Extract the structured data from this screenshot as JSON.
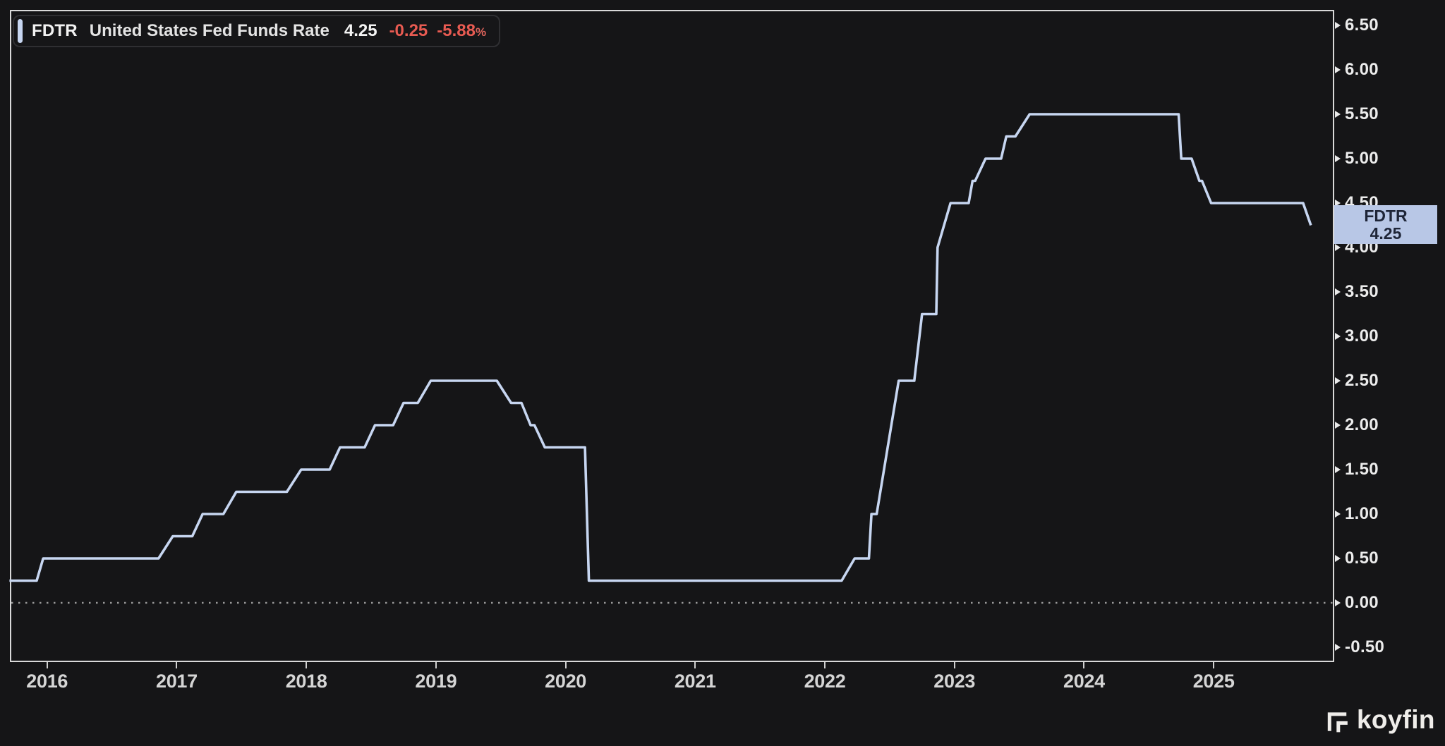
{
  "legend": {
    "ticker": "FDTR",
    "name": "United States Fed Funds Rate",
    "last": "4.25",
    "change": "-0.25",
    "change_pct": "-5.88",
    "percent_sign": "%"
  },
  "axis_price_label": {
    "ticker": "FDTR",
    "value": "4.25"
  },
  "watermark": {
    "brand": "koyfin"
  },
  "colors": {
    "background": "#151517",
    "frame_border": "#d9d9d9",
    "line": "#c7d6f1",
    "legend_accent_bar": "#c7d6f1",
    "negative_text": "#e85b52",
    "tick_text": "#ececec",
    "year_text": "#d5d5d5",
    "price_label_bg": "#b8c7e6",
    "price_label_text": "#1e2537",
    "zero_dotted_line": "#9b9b9b"
  },
  "chart_data": {
    "type": "line",
    "title": "FDTR — United States Fed Funds Rate",
    "xlabel": "",
    "ylabel": "",
    "grid": "none",
    "legend_position": "top-left",
    "x_domain": [
      2015.713,
      2025.93
    ],
    "y_domain": [
      -0.667,
      6.675
    ],
    "zero_line_value": 0,
    "x_ticks": [
      {
        "value": 2016,
        "label": "2016"
      },
      {
        "value": 2017,
        "label": "2017"
      },
      {
        "value": 2018,
        "label": "2018"
      },
      {
        "value": 2019,
        "label": "2019"
      },
      {
        "value": 2020,
        "label": "2020"
      },
      {
        "value": 2021,
        "label": "2021"
      },
      {
        "value": 2022,
        "label": "2022"
      },
      {
        "value": 2023,
        "label": "2023"
      },
      {
        "value": 2024,
        "label": "2024"
      },
      {
        "value": 2025,
        "label": "2025"
      }
    ],
    "y_ticks": [
      {
        "value": 6.5,
        "label": "6.50"
      },
      {
        "value": 6.0,
        "label": "6.00"
      },
      {
        "value": 5.5,
        "label": "5.50"
      },
      {
        "value": 5.0,
        "label": "5.00"
      },
      {
        "value": 4.5,
        "label": "4.50"
      },
      {
        "value": 4.0,
        "label": "4.00"
      },
      {
        "value": 3.5,
        "label": "3.50"
      },
      {
        "value": 3.0,
        "label": "3.00"
      },
      {
        "value": 2.5,
        "label": "2.50"
      },
      {
        "value": 2.0,
        "label": "2.00"
      },
      {
        "value": 1.5,
        "label": "1.50"
      },
      {
        "value": 1.0,
        "label": "1.00"
      },
      {
        "value": 0.5,
        "label": "0.50"
      },
      {
        "value": 0.0,
        "label": "0.00"
      },
      {
        "value": -0.5,
        "label": "-0.50"
      }
    ],
    "series": [
      {
        "name": "FDTR",
        "color": "#c7d6f1",
        "points": [
          [
            2015.71,
            0.25
          ],
          [
            2015.92,
            0.25
          ],
          [
            2015.97,
            0.5
          ],
          [
            2016.86,
            0.5
          ],
          [
            2016.97,
            0.75
          ],
          [
            2017.12,
            0.75
          ],
          [
            2017.2,
            1.0
          ],
          [
            2017.36,
            1.0
          ],
          [
            2017.46,
            1.25
          ],
          [
            2017.85,
            1.25
          ],
          [
            2017.96,
            1.5
          ],
          [
            2018.18,
            1.5
          ],
          [
            2018.26,
            1.75
          ],
          [
            2018.45,
            1.75
          ],
          [
            2018.53,
            2.0
          ],
          [
            2018.67,
            2.0
          ],
          [
            2018.75,
            2.25
          ],
          [
            2018.86,
            2.25
          ],
          [
            2018.96,
            2.5
          ],
          [
            2019.47,
            2.5
          ],
          [
            2019.58,
            2.25
          ],
          [
            2019.66,
            2.25
          ],
          [
            2019.73,
            2.0
          ],
          [
            2019.76,
            2.0
          ],
          [
            2019.84,
            1.75
          ],
          [
            2020.15,
            1.75
          ],
          [
            2020.18,
            0.25
          ],
          [
            2022.13,
            0.25
          ],
          [
            2022.23,
            0.5
          ],
          [
            2022.34,
            0.5
          ],
          [
            2022.36,
            1.0
          ],
          [
            2022.4,
            1.0
          ],
          [
            2022.57,
            2.5
          ],
          [
            2022.69,
            2.5
          ],
          [
            2022.75,
            3.25
          ],
          [
            2022.86,
            3.25
          ],
          [
            2022.87,
            4.0
          ],
          [
            2022.97,
            4.5
          ],
          [
            2023.11,
            4.5
          ],
          [
            2023.14,
            4.75
          ],
          [
            2023.16,
            4.75
          ],
          [
            2023.24,
            5.0
          ],
          [
            2023.36,
            5.0
          ],
          [
            2023.4,
            5.25
          ],
          [
            2023.47,
            5.25
          ],
          [
            2023.58,
            5.5
          ],
          [
            2024.73,
            5.5
          ],
          [
            2024.75,
            5.0
          ],
          [
            2024.83,
            5.0
          ],
          [
            2024.89,
            4.75
          ],
          [
            2024.91,
            4.75
          ],
          [
            2024.98,
            4.5
          ],
          [
            2025.69,
            4.5
          ],
          [
            2025.75,
            4.25
          ]
        ]
      }
    ]
  }
}
